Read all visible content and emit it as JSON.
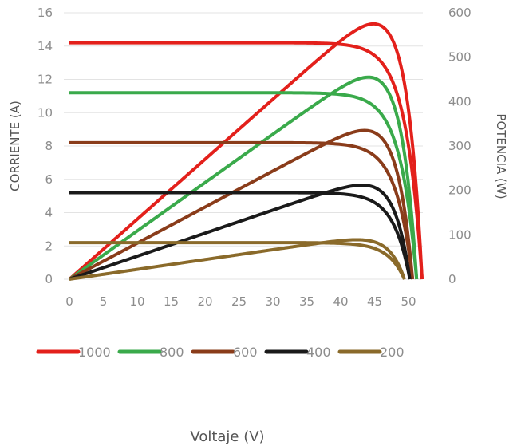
{
  "chart_data": {
    "type": "line",
    "xlabel": "Voltaje (V)",
    "ylabel_left": "CORRIENTE (A)",
    "ylabel_right": "POTENCIA (W)",
    "xlim": [
      0,
      50
    ],
    "ylim_left": [
      0,
      16
    ],
    "ylim_right": [
      0,
      600
    ],
    "x_ticks": [
      "0",
      "5",
      "10",
      "15",
      "20",
      "25",
      "30",
      "35",
      "40",
      "45",
      "50"
    ],
    "y_left_ticks": [
      "0",
      "2",
      "4",
      "6",
      "8",
      "10",
      "12",
      "14",
      "16"
    ],
    "y_right_ticks": [
      "0",
      "100",
      "200",
      "300",
      "400",
      "500",
      "600"
    ],
    "grid": true,
    "legend_position": "bottom",
    "series": [
      {
        "name": "1000",
        "color": "#e3201b",
        "isc": 14.2,
        "voc": 52.0,
        "pmax": 575
      },
      {
        "name": "800",
        "color": "#3aaa4b",
        "isc": 11.2,
        "voc": 51.2,
        "pmax": 455
      },
      {
        "name": "600",
        "color": "#8a3c1a",
        "isc": 8.2,
        "voc": 50.6,
        "pmax": 335
      },
      {
        "name": "400",
        "color": "#1a1a1a",
        "isc": 5.2,
        "voc": 50.2,
        "pmax": 212
      },
      {
        "name": "200",
        "color": "#8a6a2a",
        "isc": 2.2,
        "voc": 49.4,
        "pmax": 89
      }
    ]
  }
}
